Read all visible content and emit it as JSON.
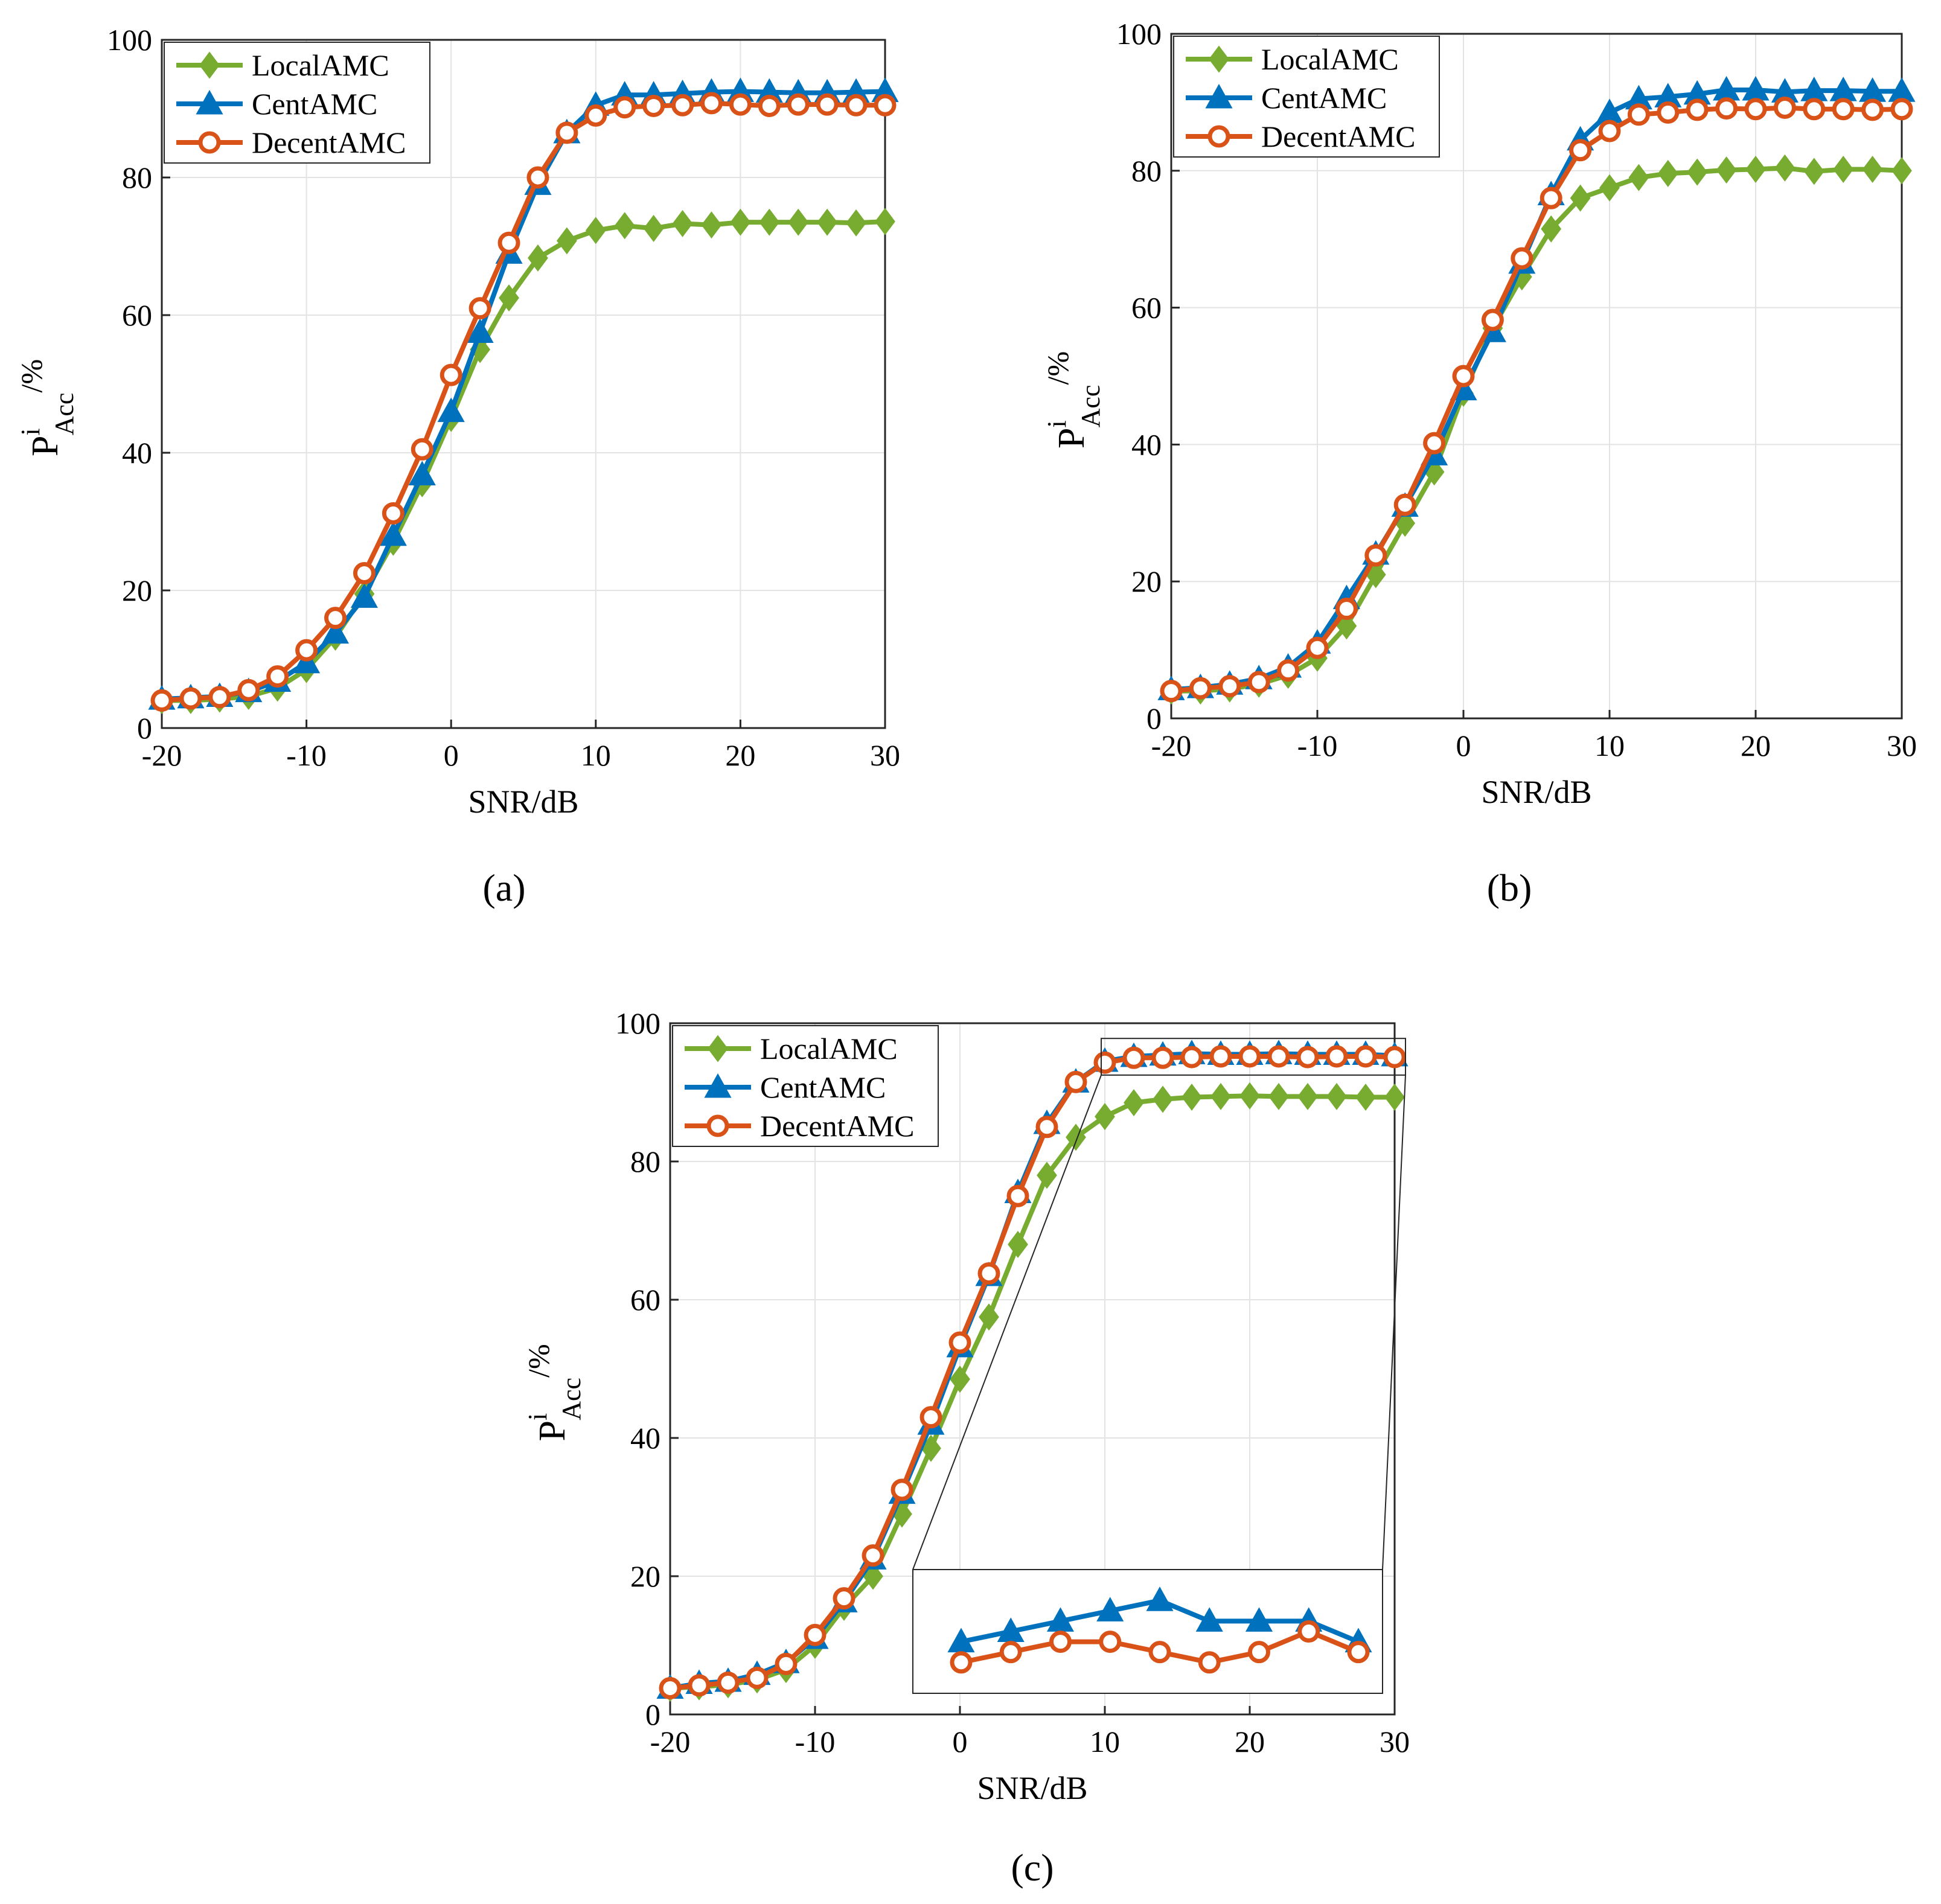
{
  "figure": {
    "panel_labels": [
      "(a)",
      "(b)",
      "(c)"
    ]
  },
  "chart_data": [
    {
      "panel": "(a)",
      "type": "line",
      "xlabel": "SNR/dB",
      "ylabel_main": "P",
      "ylabel_sup": "i",
      "ylabel_sub": "Acc",
      "ylabel_tail": "/%",
      "xlim": [
        -20,
        30
      ],
      "ylim": [
        0,
        100
      ],
      "xticks": [
        "-20",
        "-10",
        "0",
        "10",
        "20",
        "30"
      ],
      "yticks": [
        "0",
        "20",
        "40",
        "60",
        "80",
        "100"
      ],
      "grid": true,
      "legend_position": "top-left",
      "x": [
        -20,
        -18,
        -16,
        -14,
        -12,
        -10,
        -8,
        -6,
        -4,
        -2,
        0,
        2,
        4,
        6,
        8,
        10,
        12,
        14,
        16,
        18,
        20,
        22,
        24,
        26,
        28,
        30
      ],
      "series": [
        {
          "name": "LocalAMC",
          "color": "#77ac30",
          "marker": "diamond",
          "values": [
            4,
            4,
            4.2,
            4.6,
            5.8,
            8.5,
            13.2,
            19.5,
            27,
            35.5,
            45,
            55,
            62.5,
            68.3,
            70.8,
            72.3,
            73,
            72.6,
            73.3,
            73.1,
            73.5,
            73.5,
            73.5,
            73.5,
            73.4,
            73.6
          ]
        },
        {
          "name": "CentAMC",
          "color": "#0072bd",
          "marker": "triangle",
          "values": [
            4.2,
            4.4,
            4.6,
            5.3,
            6.8,
            9.5,
            13.8,
            19,
            28,
            36.8,
            46,
            57.5,
            69,
            79,
            86.5,
            90.5,
            92,
            92,
            92.2,
            92.4,
            92.5,
            92.4,
            92.3,
            92.3,
            92.4,
            92.5
          ]
        },
        {
          "name": "DecentAMC",
          "color": "#d95319",
          "marker": "circle",
          "values": [
            4,
            4.3,
            4.5,
            5.5,
            7.5,
            11.3,
            16,
            22.5,
            31.2,
            40.5,
            51.3,
            61,
            70.5,
            80,
            86.5,
            89,
            90.2,
            90.4,
            90.5,
            90.8,
            90.6,
            90.4,
            90.6,
            90.6,
            90.5,
            90.5
          ]
        }
      ]
    },
    {
      "panel": "(b)",
      "type": "line",
      "xlabel": "SNR/dB",
      "ylabel_main": "P",
      "ylabel_sup": "i",
      "ylabel_sub": "Acc",
      "ylabel_tail": "/%",
      "xlim": [
        -20,
        30
      ],
      "ylim": [
        0,
        100
      ],
      "xticks": [
        "-20",
        "-10",
        "0",
        "10",
        "20",
        "30"
      ],
      "yticks": [
        "0",
        "20",
        "40",
        "60",
        "80",
        "100"
      ],
      "grid": true,
      "legend_position": "top-left",
      "x": [
        -20,
        -18,
        -16,
        -14,
        -12,
        -10,
        -8,
        -6,
        -4,
        -2,
        0,
        2,
        4,
        6,
        8,
        10,
        12,
        14,
        16,
        18,
        20,
        22,
        24,
        26,
        28,
        30
      ],
      "series": [
        {
          "name": "LocalAMC",
          "color": "#77ac30",
          "marker": "diamond",
          "values": [
            4,
            4,
            4.3,
            5,
            6.3,
            8.8,
            13.5,
            21,
            28.5,
            36,
            47.5,
            57,
            64.5,
            71.5,
            76,
            77.5,
            79,
            79.6,
            79.8,
            80.1,
            80.2,
            80.4,
            79.9,
            80.2,
            80.2,
            80
          ]
        },
        {
          "name": "CentAMC",
          "color": "#0072bd",
          "marker": "triangle",
          "values": [
            4.2,
            4.5,
            5,
            5.8,
            7.5,
            11,
            17.5,
            24,
            31,
            38.5,
            48,
            56.5,
            66.5,
            76.5,
            84.5,
            88.5,
            90.5,
            90.8,
            91.2,
            91.8,
            91.8,
            91.5,
            91.7,
            91.7,
            91.6,
            91.6
          ]
        },
        {
          "name": "DecentAMC",
          "color": "#d95319",
          "marker": "circle",
          "values": [
            4,
            4.4,
            4.7,
            5.3,
            7,
            10.3,
            16,
            23.8,
            31.2,
            40.2,
            50,
            58.2,
            67.2,
            76,
            83,
            85.8,
            88.2,
            88.5,
            88.9,
            89.1,
            89,
            89.2,
            89,
            89,
            88.9,
            89
          ]
        }
      ]
    },
    {
      "panel": "(c)",
      "type": "line",
      "xlabel": "SNR/dB",
      "ylabel_main": "P",
      "ylabel_sup": "i",
      "ylabel_sub": "Acc",
      "ylabel_tail": "/%",
      "xlim": [
        -20,
        30
      ],
      "ylim": [
        0,
        100
      ],
      "xticks": [
        "-20",
        "-10",
        "0",
        "10",
        "20",
        "30"
      ],
      "yticks": [
        "0",
        "20",
        "40",
        "60",
        "80",
        "100"
      ],
      "grid": true,
      "legend_position": "top-left",
      "inset": "zoom of 10 to 30 dB near 95%, shown at bottom-right",
      "x": [
        -20,
        -18,
        -16,
        -14,
        -12,
        -10,
        -8,
        -6,
        -4,
        -2,
        0,
        2,
        4,
        6,
        8,
        10,
        12,
        14,
        16,
        18,
        20,
        22,
        24,
        26,
        28,
        30
      ],
      "series": [
        {
          "name": "LocalAMC",
          "color": "#77ac30",
          "marker": "diamond",
          "values": [
            3.8,
            4,
            4.3,
            5,
            6.5,
            10,
            15.5,
            20,
            29,
            38.5,
            48.5,
            57.5,
            68,
            78,
            83.5,
            86.5,
            88.5,
            89,
            89.3,
            89.4,
            89.5,
            89.4,
            89.4,
            89.4,
            89.3,
            89.3
          ]
        },
        {
          "name": "CentAMC",
          "color": "#0072bd",
          "marker": "triangle",
          "values": [
            3.8,
            4.5,
            4.8,
            5.8,
            7.5,
            11,
            16.3,
            22.5,
            32,
            42,
            53.2,
            63.5,
            75.5,
            85.5,
            91.5,
            94.5,
            95.2,
            95.4,
            95.6,
            95.5,
            95.5,
            95.6,
            95.5,
            95.5,
            95.5,
            95.3
          ]
        },
        {
          "name": "DecentAMC",
          "color": "#d95319",
          "marker": "circle",
          "values": [
            3.8,
            4.2,
            4.6,
            5.3,
            7.3,
            11.5,
            16.8,
            23,
            32.5,
            43,
            53.8,
            63.8,
            75,
            85,
            91.5,
            94.3,
            95,
            95,
            95.1,
            95.2,
            95.2,
            95.2,
            95.1,
            95.2,
            95.2,
            95.1
          ]
        }
      ],
      "inset_data": {
        "x": [
          10,
          12.5,
          15,
          17.5,
          20,
          22.5,
          25,
          27.5,
          30
        ],
        "series": [
          {
            "name": "CentAMC",
            "values": [
              94.9,
              95.0,
              95.1,
              95.2,
              95.3,
              95.1,
              95.1,
              95.1,
              94.9
            ]
          },
          {
            "name": "DecentAMC",
            "values": [
              94.7,
              94.8,
              94.9,
              94.9,
              94.8,
              94.7,
              94.8,
              95.0,
              94.8
            ]
          }
        ]
      }
    }
  ]
}
